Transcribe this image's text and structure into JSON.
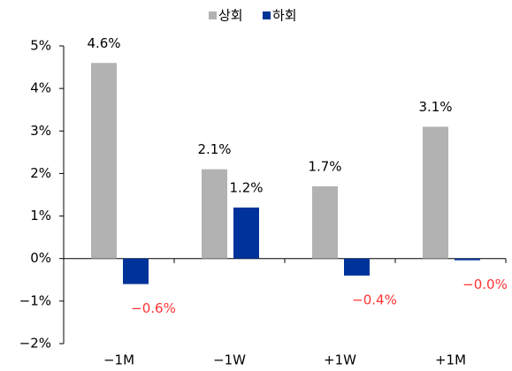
{
  "chart_data": {
    "type": "bar",
    "categories": [
      "−1M",
      "−1W",
      "+1W",
      "+1M"
    ],
    "series": [
      {
        "name": "상회",
        "color": "#b2b2b2",
        "values": [
          4.6,
          2.1,
          1.7,
          3.1
        ],
        "value_labels": [
          "4.6%",
          "2.1%",
          "1.7%",
          "3.1%"
        ]
      },
      {
        "name": "하회",
        "color": "#003399",
        "values": [
          -0.6,
          1.2,
          -0.4,
          -0.04
        ],
        "value_labels": [
          "−0.6%",
          "1.2%",
          "−0.4%",
          "−0.0%"
        ]
      }
    ],
    "ylim": [
      -2,
      5
    ],
    "yticks": [
      {
        "value": -2,
        "label": "−2%"
      },
      {
        "value": -1,
        "label": "−1%"
      },
      {
        "value": 0,
        "label": "0%"
      },
      {
        "value": 1,
        "label": "1%"
      },
      {
        "value": 2,
        "label": "2%"
      },
      {
        "value": 3,
        "label": "3%"
      },
      {
        "value": 4,
        "label": "4%"
      },
      {
        "value": 5,
        "label": "5%"
      }
    ],
    "negative_label_color": "#ff3333",
    "legend": "top"
  }
}
